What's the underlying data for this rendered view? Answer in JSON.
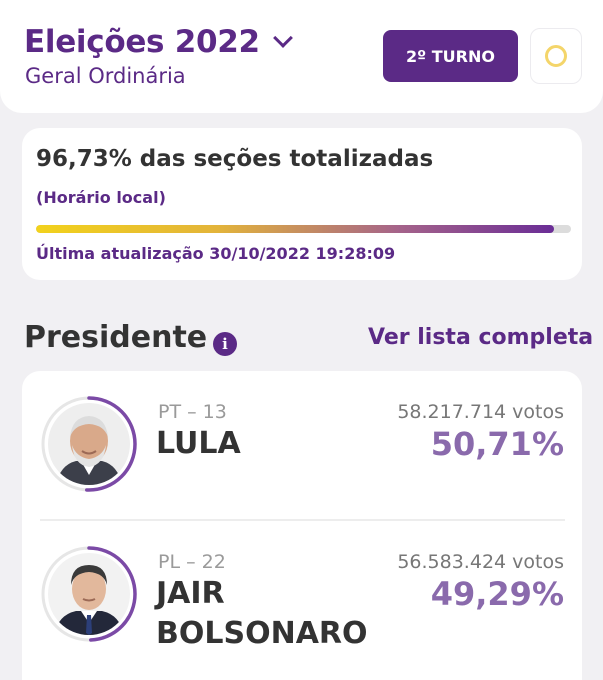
{
  "header": {
    "title": "Eleições 2022",
    "subtitle": "Geral Ordinária",
    "turno_label": "2º TURNO"
  },
  "progress": {
    "sections_text": "96,73% das seções totalizadas",
    "sections_fraction": 0.9673,
    "local_time_label": "(Horário local)",
    "last_update": "Última atualização 30/10/2022 19:28:09"
  },
  "section": {
    "title": "Presidente",
    "see_all_label": "Ver lista completa"
  },
  "candidates": [
    {
      "party": "PT – 13",
      "name": "LULA",
      "votes": "58.217.714 votos",
      "percent": "50,71%",
      "share": 0.5071
    },
    {
      "party": "PL – 22",
      "name": "JAIR BOLSONARO",
      "votes": "56.583.424 votos",
      "percent": "49,29%",
      "share": 0.4929
    }
  ],
  "colors": {
    "primary": "#5b2a86",
    "percent": "#8a6aac",
    "background": "#f1f0f3"
  },
  "icons": {
    "dropdown": "chevron-down-icon",
    "theme": "sun-icon",
    "info": "info-icon"
  }
}
